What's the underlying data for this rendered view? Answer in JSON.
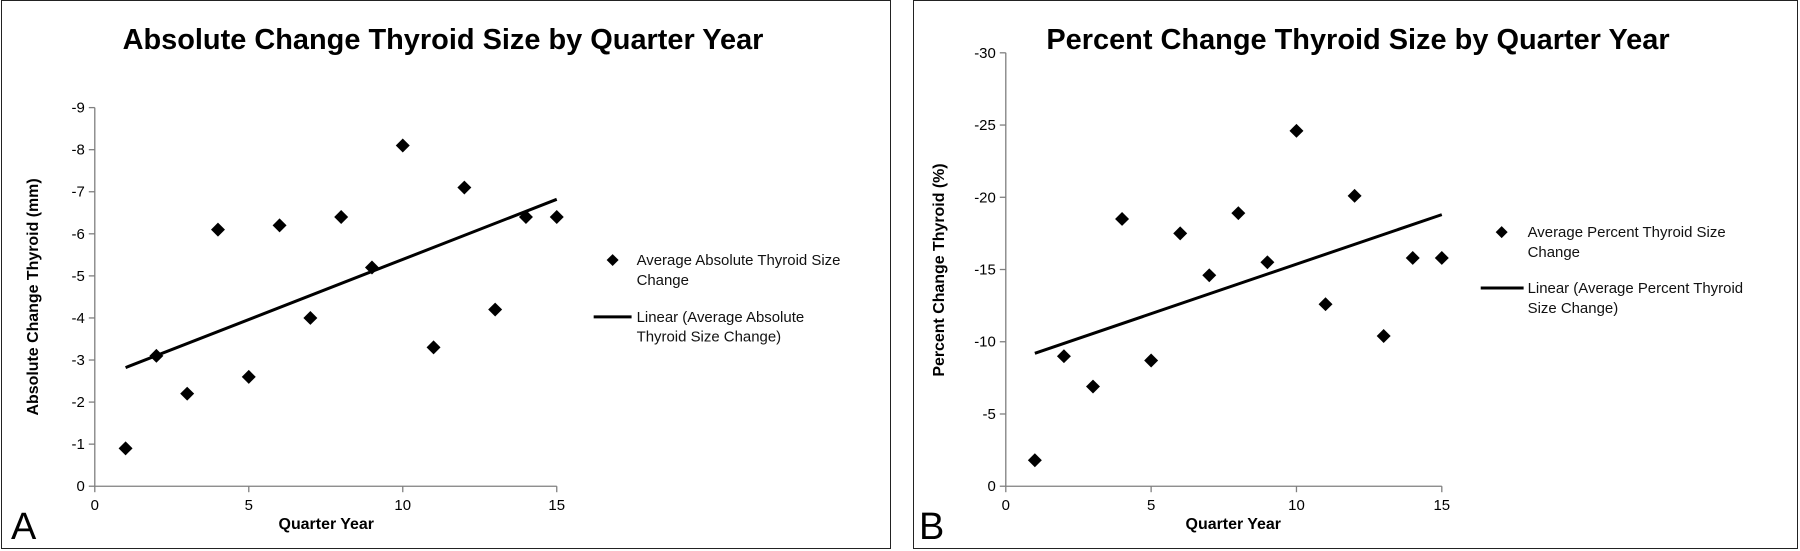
{
  "chart_data": [
    {
      "type": "scatter",
      "panel_letter": "A",
      "title": "Absolute Change Thyroid Size by Quarter Year",
      "xlabel": "Quarter Year",
      "ylabel": "Absolute Change Thyroid (mm)",
      "xlim": [
        0,
        15
      ],
      "ylim": [
        0,
        -9
      ],
      "y_axis_inverted": true,
      "xticks": [
        0,
        5,
        10,
        15
      ],
      "yticks": [
        0,
        -1,
        -2,
        -3,
        -4,
        -5,
        -6,
        -7,
        -8,
        -9
      ],
      "grid": false,
      "legend_position": "right",
      "series": [
        {
          "name": "Average Absolute Thyroid Size Change",
          "marker": "diamond",
          "x": [
            1,
            2,
            3,
            4,
            5,
            6,
            7,
            8,
            9,
            10,
            11,
            12,
            13,
            14,
            15
          ],
          "y": [
            -0.9,
            -3.1,
            -2.2,
            -6.1,
            -2.6,
            -6.2,
            -4.0,
            -6.4,
            -5.2,
            -8.1,
            -3.3,
            -7.1,
            -4.2,
            -6.4,
            -6.4
          ]
        },
        {
          "name": "Linear (Average Absolute Thyroid Size Change)",
          "type": "line",
          "x": [
            1,
            15
          ],
          "y": [
            -2.82,
            -6.82
          ]
        }
      ],
      "legend_lines": [
        [
          "Average Absolute Thyroid Size",
          "Change"
        ],
        [
          "Linear (Average Absolute",
          "Thyroid Size Change)"
        ]
      ]
    },
    {
      "type": "scatter",
      "panel_letter": "B",
      "title": "Percent Change Thyroid Size by Quarter Year",
      "xlabel": "Quarter Year",
      "ylabel": "Percent Change Thyroid (%)",
      "xlim": [
        0,
        15
      ],
      "ylim": [
        0,
        -30
      ],
      "y_axis_inverted": true,
      "xticks": [
        0,
        5,
        10,
        15
      ],
      "yticks": [
        0,
        -5,
        -10,
        -15,
        -20,
        -25,
        -30
      ],
      "grid": false,
      "legend_position": "right",
      "series": [
        {
          "name": "Average Percent Thyroid Size Change",
          "marker": "diamond",
          "x": [
            1,
            2,
            3,
            4,
            5,
            6,
            7,
            8,
            9,
            10,
            11,
            12,
            13,
            14,
            15
          ],
          "y": [
            -1.8,
            -9.0,
            -6.9,
            -18.5,
            -8.7,
            -17.5,
            -14.6,
            -18.9,
            -15.5,
            -24.6,
            -12.6,
            -20.1,
            -10.4,
            -15.8,
            -15.8
          ]
        },
        {
          "name": "Linear (Average Percent Thyroid Size Change)",
          "type": "line",
          "x": [
            1,
            15
          ],
          "y": [
            -9.2,
            -18.8
          ]
        }
      ],
      "legend_lines": [
        [
          "Average Percent Thyroid Size",
          "Change"
        ],
        [
          "Linear (Average Percent Thyroid",
          "Size Change)"
        ]
      ]
    }
  ]
}
